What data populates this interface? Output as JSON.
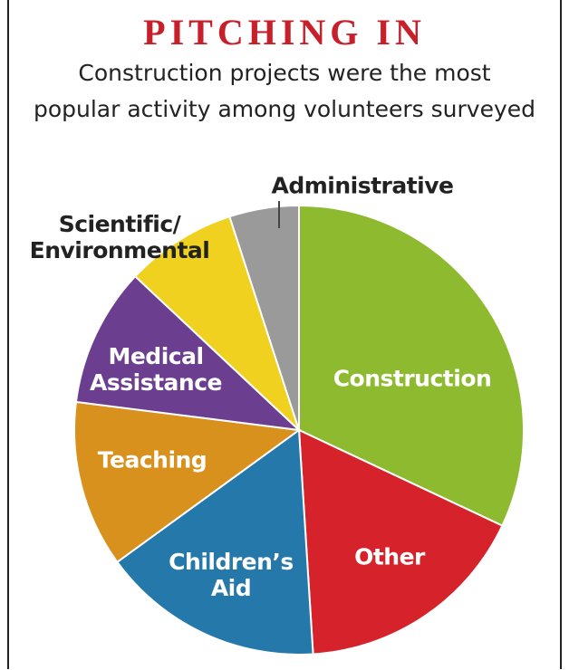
{
  "chart_data": {
    "type": "pie",
    "title": "PITCHING IN",
    "subtitle": [
      "Construction projects were the most",
      "popular activity among volunteers surveyed"
    ],
    "categories": [
      "Construction",
      "Other",
      "Children’s Aid",
      "Teaching",
      "Medical Assistance",
      "Scientific/ Environmental",
      "Administrative"
    ],
    "values": [
      32,
      17,
      16,
      12,
      10,
      8,
      5
    ],
    "colors": [
      "#8dba2f",
      "#d6232b",
      "#2478aa",
      "#d9911e",
      "#6b3e90",
      "#f1d11f",
      "#9a9a9a"
    ]
  }
}
